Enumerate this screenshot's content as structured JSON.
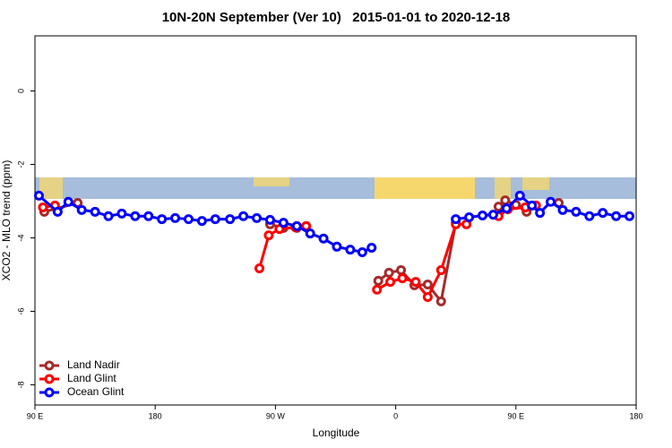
{
  "chart_data": {
    "type": "line",
    "title": "10N-20N September (Ver 10)   2015-01-01 to 2020-12-18",
    "xlabel": "Longitude",
    "ylabel": "XCO2 - MLO trend (ppm)",
    "xlim": [
      90,
      540
    ],
    "ylim": [
      -8.55,
      1.5
    ],
    "xticks": [
      {
        "value": 90,
        "label": "90 E"
      },
      180,
      {
        "value": 270,
        "label": "90 W"
      },
      {
        "value": 360,
        "label": "0"
      },
      {
        "value": 450,
        "label": "90 E"
      },
      {
        "value": 540,
        "label": "180"
      }
    ],
    "yticks": [
      0,
      -2,
      -4,
      -6,
      -8
    ],
    "legend": "bottom-left",
    "series": [
      {
        "name": "Land Nadir",
        "color": "#a52a2a",
        "x": [
          97,
          122,
          200,
          266,
          276,
          286,
          293,
          320,
          347,
          355,
          364,
          374,
          384,
          394,
          405,
          420,
          437,
          442,
          450,
          458,
          470,
          482
        ],
        "values": [
          -3.29,
          -3.05,
          null,
          -3.63,
          -3.73,
          -3.73,
          -3.68,
          null,
          -5.17,
          -4.95,
          -4.88,
          -5.29,
          -5.27,
          -5.73,
          -3.58,
          null,
          -3.15,
          -2.98,
          -3.1,
          -3.29,
          null,
          -3.05
        ]
      },
      {
        "name": "Land Glint",
        "color": "#ff0000",
        "x": [
          96,
          105,
          200,
          258,
          265,
          273,
          285,
          293,
          320,
          346,
          356,
          365,
          375,
          384,
          394,
          405,
          413,
          425,
          437,
          444,
          457,
          465
        ],
        "values": [
          -3.17,
          -3.12,
          null,
          -4.83,
          -3.93,
          -3.76,
          -3.71,
          -3.68,
          null,
          -5.41,
          -5.2,
          -5.1,
          -5.2,
          -5.61,
          -4.88,
          -3.63,
          -3.63,
          null,
          -3.41,
          -3.22,
          -3.17,
          -3.12
        ]
      },
      {
        "name": "Ocean Glint",
        "color": "#0000ff",
        "x": [
          93,
          107,
          115,
          125,
          135,
          145,
          155,
          165,
          175,
          185,
          195,
          205,
          215,
          225,
          236,
          246,
          256,
          266,
          276,
          286,
          296,
          306,
          316,
          326,
          335,
          342,
          380,
          405,
          415,
          425,
          433,
          443,
          453,
          462,
          468,
          476,
          485,
          495,
          505,
          515,
          525,
          535
        ],
        "values": [
          -2.85,
          -3.29,
          -3.02,
          -3.24,
          -3.29,
          -3.41,
          -3.34,
          -3.41,
          -3.41,
          -3.49,
          -3.46,
          -3.49,
          -3.54,
          -3.49,
          -3.49,
          -3.41,
          -3.46,
          -3.51,
          -3.59,
          -3.68,
          -3.88,
          -4.02,
          -4.24,
          -4.32,
          -4.39,
          -4.27,
          null,
          -3.49,
          -3.44,
          -3.39,
          -3.37,
          -3.2,
          -2.85,
          -3.12,
          -3.32,
          -3.02,
          -3.24,
          -3.29,
          -3.41,
          -3.32,
          -3.41,
          -3.41
        ]
      }
    ]
  }
}
